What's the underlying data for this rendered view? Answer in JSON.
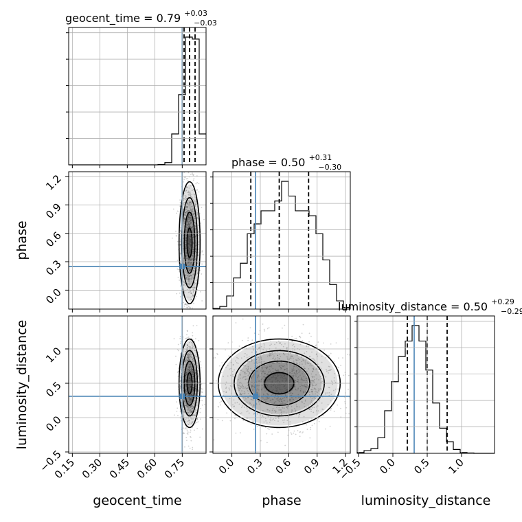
{
  "chart_data": {
    "type": "corner",
    "parameters": [
      {
        "name": "geocent_time",
        "median": 0.79,
        "plus": "+0.03",
        "minus": "−0.03",
        "title_prefix": "geocent_time = 0.79",
        "range": [
          0.13,
          0.88
        ],
        "ticks": [
          0.15,
          0.3,
          0.45,
          0.6,
          0.75
        ],
        "tick_labels": [
          "0.15",
          "0.30",
          "0.45",
          "0.60",
          "0.75"
        ],
        "truth": 0.75,
        "quantiles": [
          0.76,
          0.79,
          0.82
        ]
      },
      {
        "name": "phase",
        "median": 0.5,
        "plus": "+0.31",
        "minus": "−0.30",
        "title_prefix": "phase = 0.50",
        "range": [
          -0.2,
          1.25
        ],
        "ticks": [
          0.0,
          0.3,
          0.6,
          0.9,
          1.2
        ],
        "tick_labels": [
          "0.0",
          "0.3",
          "0.6",
          "0.9",
          "1.2"
        ],
        "truth": 0.25,
        "quantiles": [
          0.2,
          0.5,
          0.81
        ]
      },
      {
        "name": "luminosity_distance",
        "median": 0.5,
        "plus": "+0.29",
        "minus": "−0.29",
        "title_prefix": "luminosity_distance = 0.50",
        "range": [
          -0.52,
          1.48
        ],
        "ticks": [
          -0.5,
          0.0,
          0.5,
          1.0
        ],
        "tick_labels": [
          "−0.5",
          "0.0",
          "0.5",
          "1.0"
        ],
        "truth": 0.31,
        "quantiles": [
          0.21,
          0.5,
          0.79
        ]
      }
    ],
    "y_tick_labels": {
      "phase": [
        "0.0",
        "0.3",
        "0.6",
        "0.9",
        "1.2"
      ],
      "luminosity_distance": [
        "−0.5",
        "0.0",
        "0.5",
        "1.0"
      ]
    },
    "histograms": {
      "geocent_time": {
        "edges_start": 0.13,
        "bin_width": 0.0375,
        "counts": [
          0,
          0,
          0,
          0,
          0,
          0,
          0,
          0,
          0,
          0,
          0,
          0,
          0,
          1,
          8,
          110,
          250,
          455,
          448,
          110
        ]
      },
      "phase": {
        "edges_start": -0.2,
        "bin_width": 0.0725,
        "counts": [
          2,
          8,
          40,
          95,
          140,
          230,
          260,
          300,
          300,
          330,
          390,
          345,
          300,
          300,
          285,
          230,
          150,
          75,
          25,
          5
        ]
      },
      "luminosity_distance": {
        "edges_start": -0.52,
        "bin_width": 0.1,
        "counts": [
          2,
          7,
          12,
          40,
          110,
          185,
          250,
          290,
          330,
          290,
          215,
          130,
          65,
          30,
          10,
          2,
          1,
          0,
          0,
          0
        ]
      }
    },
    "grid": true
  }
}
